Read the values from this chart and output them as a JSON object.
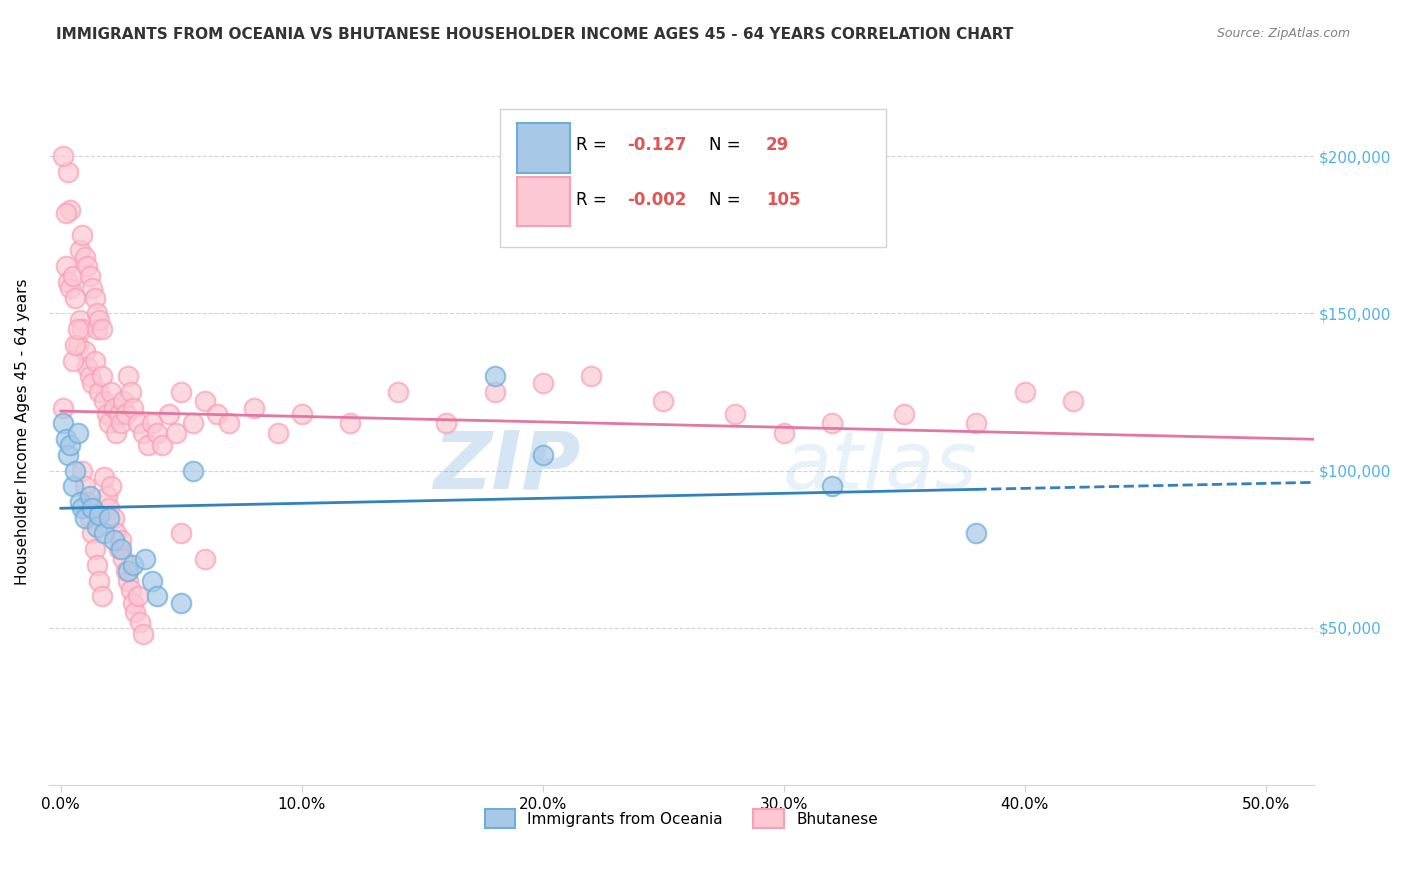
{
  "title": "IMMIGRANTS FROM OCEANIA VS BHUTANESE HOUSEHOLDER INCOME AGES 45 - 64 YEARS CORRELATION CHART",
  "source": "Source: ZipAtlas.com",
  "ylabel": "Householder Income Ages 45 - 64 years",
  "x_tick_labels": [
    "0.0%",
    "10.0%",
    "20.0%",
    "30.0%",
    "40.0%",
    "50.0%"
  ],
  "x_tick_positions": [
    0.0,
    0.1,
    0.2,
    0.3,
    0.4,
    0.5
  ],
  "y_tick_labels": [
    "$50,000",
    "$100,000",
    "$150,000",
    "$200,000"
  ],
  "y_tick_positions": [
    50000,
    100000,
    150000,
    200000
  ],
  "xlim": [
    -0.005,
    0.52
  ],
  "ylim": [
    0,
    225000
  ],
  "blue_color": "#6baed6",
  "blue_face": "#a8c8e8",
  "pink_color": "#fa9fb5",
  "pink_face": "#fbc8d4",
  "blue_line_color": "#3182bd",
  "pink_line_color": "#e377a2",
  "watermark": "ZIPatlas",
  "oceania_x": [
    0.001,
    0.002,
    0.003,
    0.004,
    0.005,
    0.006,
    0.007,
    0.008,
    0.009,
    0.01,
    0.012,
    0.013,
    0.015,
    0.016,
    0.018,
    0.02,
    0.022,
    0.025,
    0.028,
    0.03,
    0.035,
    0.038,
    0.04,
    0.05,
    0.055,
    0.18,
    0.2,
    0.32,
    0.38
  ],
  "oceania_y": [
    115000,
    110000,
    105000,
    108000,
    95000,
    100000,
    112000,
    90000,
    88000,
    85000,
    92000,
    88000,
    82000,
    86000,
    80000,
    85000,
    78000,
    75000,
    68000,
    70000,
    72000,
    65000,
    60000,
    58000,
    100000,
    130000,
    105000,
    95000,
    80000
  ],
  "bhutanese_x": [
    0.001,
    0.002,
    0.003,
    0.004,
    0.005,
    0.006,
    0.007,
    0.008,
    0.009,
    0.01,
    0.011,
    0.012,
    0.013,
    0.014,
    0.015,
    0.016,
    0.017,
    0.018,
    0.019,
    0.02,
    0.021,
    0.022,
    0.023,
    0.024,
    0.025,
    0.026,
    0.027,
    0.028,
    0.029,
    0.03,
    0.032,
    0.034,
    0.036,
    0.038,
    0.04,
    0.042,
    0.045,
    0.048,
    0.05,
    0.055,
    0.06,
    0.065,
    0.07,
    0.08,
    0.09,
    0.1,
    0.12,
    0.14,
    0.16,
    0.18,
    0.2,
    0.22,
    0.25,
    0.28,
    0.3,
    0.32,
    0.35,
    0.38,
    0.4,
    0.42,
    0.008,
    0.009,
    0.01,
    0.011,
    0.012,
    0.013,
    0.014,
    0.015,
    0.016,
    0.017,
    0.018,
    0.019,
    0.02,
    0.021,
    0.022,
    0.023,
    0.024,
    0.025,
    0.026,
    0.027,
    0.028,
    0.029,
    0.03,
    0.031,
    0.032,
    0.033,
    0.034,
    0.005,
    0.006,
    0.007,
    0.003,
    0.004,
    0.002,
    0.001,
    0.009,
    0.01,
    0.011,
    0.012,
    0.013,
    0.014,
    0.015,
    0.016,
    0.017,
    0.05,
    0.06
  ],
  "bhutanese_y": [
    120000,
    165000,
    160000,
    158000,
    162000,
    155000,
    140000,
    148000,
    145000,
    138000,
    133000,
    130000,
    128000,
    135000,
    145000,
    125000,
    130000,
    122000,
    118000,
    115000,
    125000,
    120000,
    112000,
    118000,
    115000,
    122000,
    118000,
    130000,
    125000,
    120000,
    115000,
    112000,
    108000,
    115000,
    112000,
    108000,
    118000,
    112000,
    125000,
    115000,
    122000,
    118000,
    115000,
    120000,
    112000,
    118000,
    115000,
    125000,
    115000,
    125000,
    128000,
    130000,
    122000,
    118000,
    112000,
    115000,
    118000,
    115000,
    125000,
    122000,
    170000,
    175000,
    168000,
    165000,
    162000,
    158000,
    155000,
    150000,
    148000,
    145000,
    98000,
    92000,
    88000,
    95000,
    85000,
    80000,
    75000,
    78000,
    72000,
    68000,
    65000,
    62000,
    58000,
    55000,
    60000,
    52000,
    48000,
    135000,
    140000,
    145000,
    195000,
    183000,
    182000,
    200000,
    100000,
    95000,
    90000,
    85000,
    80000,
    75000,
    70000,
    65000,
    60000,
    80000,
    72000
  ]
}
